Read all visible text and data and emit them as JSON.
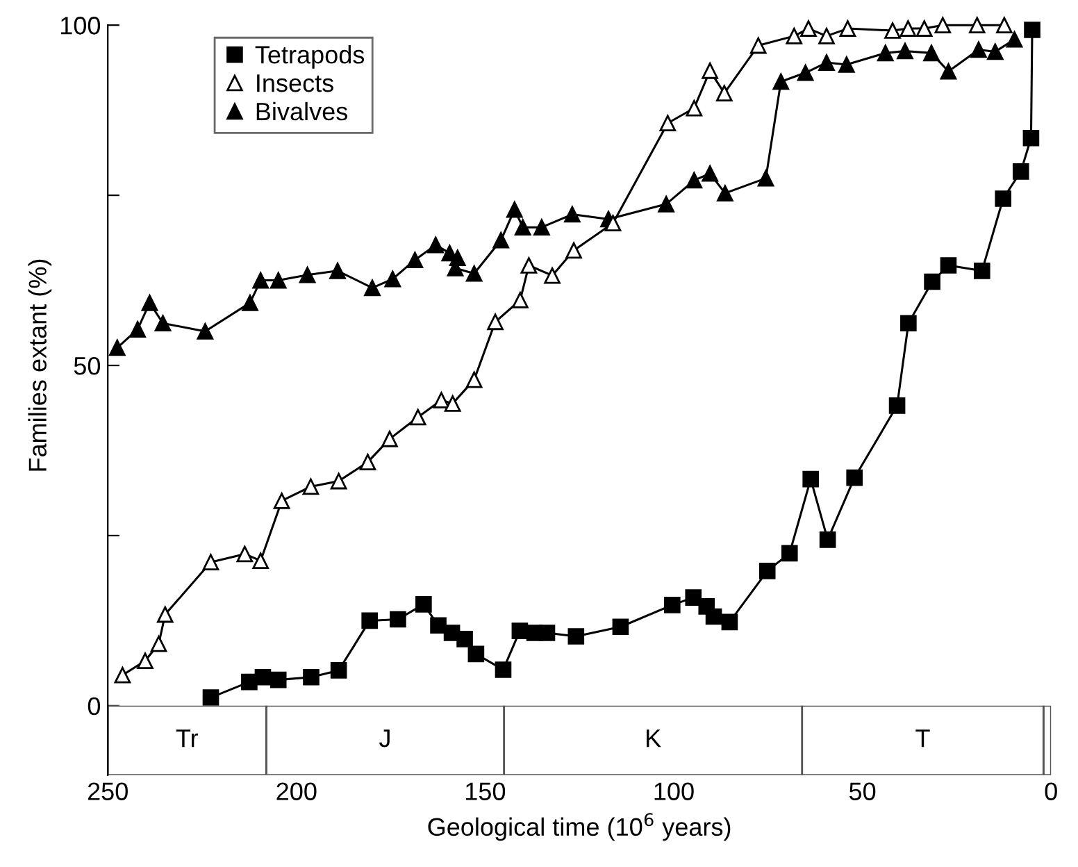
{
  "chart_data": [
    {
      "type": "line",
      "ylabel": "Families extant (%)",
      "xlim": [
        250,
        0
      ],
      "tick_labels": "y",
      "ylim": [
        0,
        100
      ],
      "yticks": [
        0,
        {
          "value": 25,
          "label": null
        },
        50,
        {
          "value": 75,
          "label": null
        },
        100
      ],
      "grid": false,
      "legend": "top left",
      "line_style": "solid",
      "series": [
        {
          "name": "Tetrapods",
          "color": "#000000",
          "marker": "square",
          "x": [
            222.7,
            212.5,
            208.9,
            204.8,
            196.1,
            188.8,
            180.6,
            173.1,
            166.3,
            162.4,
            158.8,
            155.4,
            152.4,
            145.2,
            140.8,
            136.9,
            133.6,
            125.9,
            114.1,
            100.4,
            94.8,
            91.3,
            89.4,
            85.2,
            75.2,
            69.3,
            63.7,
            59.2,
            52.1,
            40.8,
            37.8,
            31.5,
            27.2,
            18.3,
            12.7,
            8.0,
            5.3,
            5.0
          ],
          "values": [
            1.2,
            3.5,
            4.2,
            3.8,
            4.2,
            5.2,
            12.5,
            12.7,
            14.9,
            11.8,
            10.7,
            9.8,
            7.6,
            5.3,
            11.0,
            10.7,
            10.7,
            10.2,
            11.6,
            14.8,
            15.9,
            14.6,
            13.1,
            12.3,
            19.8,
            22.4,
            33.3,
            24.4,
            33.5,
            44.1,
            56.2,
            62.3,
            64.7,
            63.9,
            74.5,
            78.5,
            83.4,
            99.3
          ]
        },
        {
          "name": "Insects",
          "color": "#000000",
          "marker": "triangle-open",
          "x": [
            246.1,
            240.1,
            236.5,
            234.8,
            222.7,
            213.7,
            209.5,
            203.9,
            196.2,
            188.8,
            181.1,
            175.3,
            167.8,
            161.6,
            158.6,
            152.9,
            147.3,
            140.7,
            138.4,
            132.2,
            126.5,
            116.1,
            101.6,
            94.6,
            90.4,
            86.6,
            77.6,
            68.1,
            64.3,
            59.5,
            53.9,
            42.0,
            37.9,
            33.6,
            28.7,
            19.6,
            12.4
          ],
          "values": [
            4.5,
            6.6,
            9.1,
            13.4,
            21.1,
            22.3,
            21.3,
            30.1,
            32.2,
            33.0,
            35.8,
            39.2,
            42.4,
            44.9,
            44.4,
            47.9,
            56.4,
            59.6,
            64.7,
            63.2,
            66.9,
            70.9,
            85.6,
            87.8,
            93.3,
            90.0,
            97.0,
            98.4,
            99.5,
            98.4,
            99.5,
            99.2,
            99.5,
            99.5,
            100,
            100,
            100
          ]
        },
        {
          "name": "Bivalves",
          "color": "#000000",
          "marker": "triangle",
          "x": [
            247.5,
            242.1,
            238.9,
            235.4,
            224.2,
            212.3,
            209.5,
            204.8,
            197.1,
            189.1,
            179.9,
            174.5,
            168.6,
            163.1,
            159.4,
            157.3,
            157.9,
            152.9,
            145.8,
            142.2,
            140.0,
            135.0,
            126.9,
            117.3,
            102.0,
            94.6,
            90.4,
            86.4,
            75.6,
            71.6,
            65.1,
            59.5,
            54.2,
            43.9,
            38.7,
            31.7,
            27.2,
            19.2,
            14.8,
            9.7
          ],
          "values": [
            52.6,
            55.3,
            59.2,
            56.2,
            55.0,
            59.2,
            62.5,
            62.5,
            63.3,
            63.9,
            61.4,
            62.7,
            65.5,
            67.7,
            66.5,
            65.8,
            64.3,
            63.5,
            68.4,
            72.9,
            70.3,
            70.3,
            72.2,
            71.5,
            73.7,
            77.2,
            78.2,
            75.3,
            77.5,
            91.7,
            93.0,
            94.5,
            94.2,
            95.9,
            96.2,
            95.9,
            93.2,
            96.4,
            96.1,
            97.9
          ]
        }
      ]
    },
    {
      "type": "bar",
      "orientation": "horizontal",
      "stacked": true,
      "categories": [
        null
      ],
      "xlabel": "Geological time (10$^{6}$ years)",
      "xlim": [
        250,
        0
      ],
      "xticks": [
        250,
        200,
        150,
        100,
        50,
        0
      ],
      "series": [
        {
          "color": "#ffffff",
          "values": [
            2
          ]
        },
        {
          "color": "#ffffff",
          "values": [
            64
          ],
          "value_labels": [
            "T"
          ]
        },
        {
          "color": "#ffffff",
          "values": [
            79
          ],
          "value_labels": [
            "K"
          ]
        },
        {
          "color": "#ffffff",
          "values": [
            63
          ],
          "value_labels": [
            "J"
          ]
        },
        {
          "color": "#ffffff",
          "values": [
            42
          ],
          "value_labels": [
            "Tr"
          ]
        }
      ]
    }
  ]
}
